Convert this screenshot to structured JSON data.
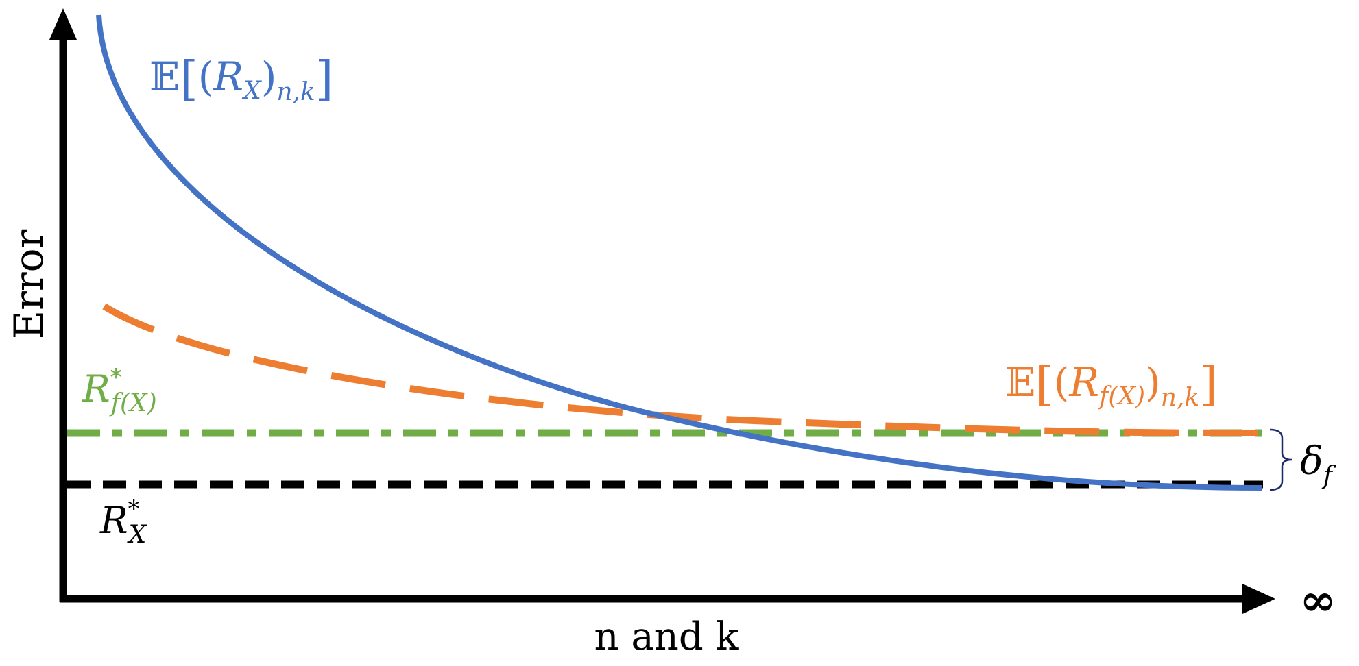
{
  "axes": {
    "y_label": "Error",
    "x_label": "n and k",
    "x_end_symbol": "∞"
  },
  "curves": {
    "rx_expected": {
      "bb": "𝔼",
      "open_bracket": "[",
      "open_paren": "(",
      "var": "R",
      "var_sub": "X",
      "close_paren": ")",
      "outer_sub": "n,k",
      "close_bracket": "]",
      "color": "#4472C4"
    },
    "rfx_expected": {
      "bb": "𝔼",
      "open_bracket": "[",
      "open_paren": "(",
      "var": "R",
      "var_sub": "f(X)",
      "close_paren": ")",
      "outer_sub": "n,k",
      "close_bracket": "]",
      "color": "#ED7D31"
    }
  },
  "levels": {
    "rfx_star": {
      "var": "R",
      "sub": "f(X)",
      "sup": "*",
      "color": "#70AD47"
    },
    "rx_star": {
      "var": "R",
      "sub": "X",
      "sup": "*",
      "color": "#000000"
    }
  },
  "gap": {
    "symbol": "δ",
    "sub": "f",
    "brace_color": "#1F2A6B"
  }
}
